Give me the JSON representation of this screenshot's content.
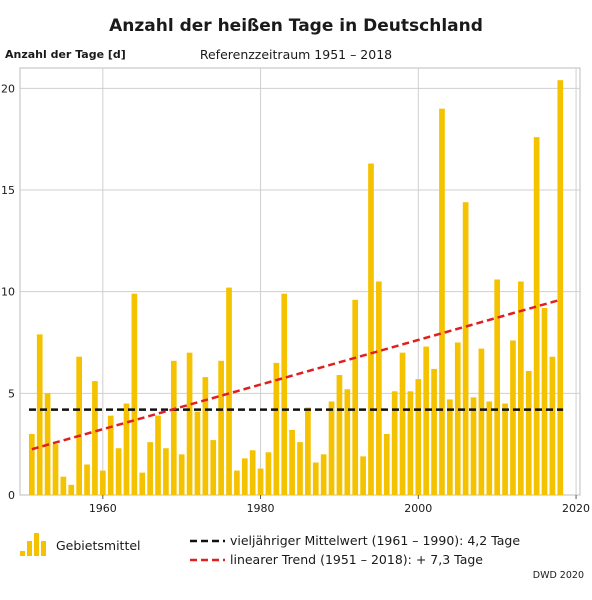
{
  "chart_data": {
    "type": "bar",
    "title": "Anzahl der heißen Tage in Deutschland",
    "subtitle": "Referenzzeitraum 1951 – 2018",
    "ylabel": "Anzahl der Tage [d]",
    "xlabel": "",
    "ylim": [
      0,
      21
    ],
    "xlim": [
      1949.5,
      2020.5
    ],
    "yticks": [
      0,
      5,
      10,
      15,
      20
    ],
    "xticks": [
      1960,
      1980,
      2000,
      2020
    ],
    "grid": true,
    "bar_color": "#f5c200",
    "series": [
      {
        "name": "Gebietsmittel",
        "x": [
          1951,
          1952,
          1953,
          1954,
          1955,
          1956,
          1957,
          1958,
          1959,
          1960,
          1961,
          1962,
          1963,
          1964,
          1965,
          1966,
          1967,
          1968,
          1969,
          1970,
          1971,
          1972,
          1973,
          1974,
          1975,
          1976,
          1977,
          1978,
          1979,
          1980,
          1981,
          1982,
          1983,
          1984,
          1985,
          1986,
          1987,
          1988,
          1989,
          1990,
          1991,
          1992,
          1993,
          1994,
          1995,
          1996,
          1997,
          1998,
          1999,
          2000,
          2001,
          2002,
          2003,
          2004,
          2005,
          2006,
          2007,
          2008,
          2009,
          2010,
          2011,
          2012,
          2013,
          2014,
          2015,
          2016,
          2017,
          2018
        ],
        "values": [
          3.0,
          7.9,
          5.0,
          2.5,
          0.9,
          0.5,
          6.8,
          1.5,
          5.6,
          1.2,
          3.9,
          2.3,
          4.5,
          9.9,
          1.1,
          2.6,
          3.9,
          2.3,
          6.6,
          2.0,
          7.0,
          4.1,
          5.8,
          2.7,
          6.6,
          10.2,
          1.2,
          1.8,
          2.2,
          1.3,
          2.1,
          6.5,
          9.9,
          3.2,
          2.6,
          4.3,
          1.6,
          2.0,
          4.6,
          5.9,
          5.2,
          9.6,
          1.9,
          16.3,
          10.5,
          3.0,
          5.1,
          7.0,
          5.1,
          5.7,
          7.3,
          6.2,
          19.0,
          4.7,
          7.5,
          14.4,
          4.8,
          7.2,
          4.6,
          10.6,
          4.5,
          7.6,
          10.5,
          6.1,
          17.6,
          9.2,
          6.8,
          20.4
        ]
      }
    ],
    "reference_lines": [
      {
        "name": "vieljähriger Mittelwert (1961 – 1990): 4,2 Tage",
        "type": "horizontal",
        "y": 4.2,
        "color": "#111111",
        "style": "dashed"
      },
      {
        "name": "linearer Trend (1951 – 2018): + 7,3 Tage",
        "type": "linear",
        "x": [
          1951,
          2018
        ],
        "y": [
          2.25,
          9.6
        ],
        "color": "#e0201f",
        "style": "dashed"
      }
    ],
    "legend_placement": "bottom",
    "source": "DWD 2020"
  }
}
